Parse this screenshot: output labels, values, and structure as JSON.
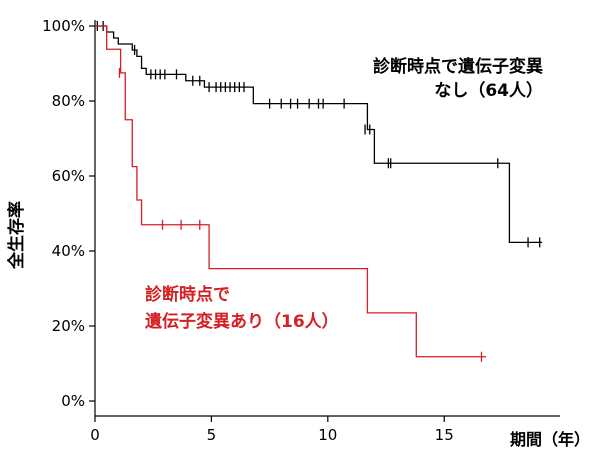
{
  "chart_data": {
    "type": "line",
    "title": "",
    "xlabel": "期間（年）",
    "ylabel": "全生存率",
    "xlim": [
      0,
      19.5
    ],
    "ylim": [
      0,
      100
    ],
    "x_ticks": [
      0,
      5,
      10,
      15
    ],
    "x_tick_labels": [
      "0",
      "5",
      "10",
      "15"
    ],
    "y_ticks": [
      0,
      20,
      40,
      60,
      80,
      100
    ],
    "y_tick_labels": [
      "0%",
      "20%",
      "40%",
      "60%",
      "80%",
      "100%"
    ],
    "grid": false,
    "series": [
      {
        "name": "診断時点で遺伝子変異なし（64人）",
        "label_lines": [
          "診断時点で遺伝子変異",
          "なし（64人）"
        ],
        "color": "#000000",
        "steps": [
          [
            0,
            100
          ],
          [
            0.5,
            98.4
          ],
          [
            0.8,
            96.8
          ],
          [
            1.0,
            95.2
          ],
          [
            1.6,
            93.6
          ],
          [
            1.8,
            91.9
          ],
          [
            2.0,
            88.7
          ],
          [
            2.2,
            87.1
          ],
          [
            3.9,
            85.4
          ],
          [
            4.7,
            83.7
          ],
          [
            6.8,
            79.3
          ],
          [
            11.7,
            72.4
          ],
          [
            12.0,
            63.4
          ],
          [
            17.8,
            42.3
          ],
          [
            19.2,
            42.3
          ]
        ],
        "censors": [
          [
            0.1,
            100
          ],
          [
            0.35,
            100
          ],
          [
            1.7,
            93.6
          ],
          [
            2.4,
            87.1
          ],
          [
            2.6,
            87.1
          ],
          [
            2.8,
            87.1
          ],
          [
            3.0,
            87.1
          ],
          [
            3.5,
            87.1
          ],
          [
            4.2,
            85.4
          ],
          [
            4.5,
            85.4
          ],
          [
            4.9,
            83.7
          ],
          [
            5.2,
            83.7
          ],
          [
            5.4,
            83.7
          ],
          [
            5.6,
            83.7
          ],
          [
            5.8,
            83.7
          ],
          [
            6.0,
            83.7
          ],
          [
            6.2,
            83.7
          ],
          [
            6.4,
            83.7
          ],
          [
            7.5,
            79.3
          ],
          [
            8.0,
            79.3
          ],
          [
            8.4,
            79.3
          ],
          [
            8.7,
            79.3
          ],
          [
            9.2,
            79.3
          ],
          [
            9.6,
            79.3
          ],
          [
            9.8,
            79.3
          ],
          [
            10.7,
            79.3
          ],
          [
            11.6,
            72.4
          ],
          [
            11.8,
            72.4
          ],
          [
            12.6,
            63.4
          ],
          [
            12.7,
            63.4
          ],
          [
            17.3,
            63.4
          ],
          [
            18.6,
            42.3
          ],
          [
            19.1,
            42.3
          ]
        ]
      },
      {
        "name": "診断時点で遺伝子変異あり（16人）",
        "label_lines": [
          "診断時点で",
          "遺伝子変異あり（16人）"
        ],
        "color": "#d41f23",
        "steps": [
          [
            0,
            100
          ],
          [
            0.5,
            93.8
          ],
          [
            1.1,
            87.5
          ],
          [
            1.3,
            75.0
          ],
          [
            1.6,
            62.5
          ],
          [
            1.8,
            53.6
          ],
          [
            2.0,
            47.0
          ],
          [
            4.9,
            35.3
          ],
          [
            11.7,
            23.5
          ],
          [
            13.8,
            11.8
          ],
          [
            16.8,
            11.8
          ]
        ],
        "censors": [
          [
            1.05,
            87.5
          ],
          [
            2.9,
            47.0
          ],
          [
            3.7,
            47.0
          ],
          [
            4.5,
            47.0
          ],
          [
            16.6,
            11.8
          ]
        ]
      }
    ]
  }
}
